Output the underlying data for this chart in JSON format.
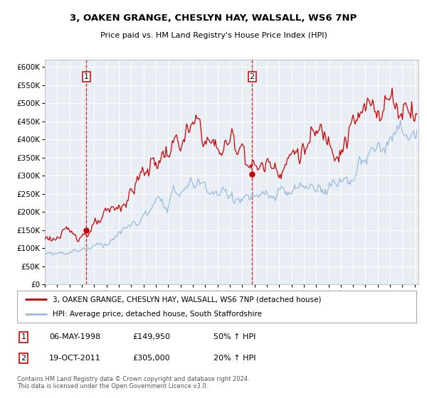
{
  "title1": "3, OAKEN GRANGE, CHESLYN HAY, WALSALL, WS6 7NP",
  "title2": "Price paid vs. HM Land Registry's House Price Index (HPI)",
  "ylim": [
    0,
    620000
  ],
  "yticks": [
    0,
    50000,
    100000,
    150000,
    200000,
    250000,
    300000,
    350000,
    400000,
    450000,
    500000,
    550000,
    600000
  ],
  "xlim_start": 1995.0,
  "xlim_end": 2025.3,
  "sale1_date": 1998.35,
  "sale1_price": 149950,
  "sale2_date": 2011.8,
  "sale2_price": 305000,
  "line_color_house": "#cc0000",
  "line_color_hpi": "#99bbdd",
  "dot_color": "#cc0000",
  "vline_color": "#cc0000",
  "legend_label_house": "3, OAKEN GRANGE, CHESLYN HAY, WALSALL, WS6 7NP (detached house)",
  "legend_label_hpi": "HPI: Average price, detached house, South Staffordshire",
  "annotation1_num": "1",
  "annotation1_date": "06-MAY-1998",
  "annotation1_price": "£149,950",
  "annotation1_hpi": "50% ↑ HPI",
  "annotation2_num": "2",
  "annotation2_date": "19-OCT-2011",
  "annotation2_price": "£305,000",
  "annotation2_hpi": "20% ↑ HPI",
  "footer": "Contains HM Land Registry data © Crown copyright and database right 2024.\nThis data is licensed under the Open Government Licence v3.0.",
  "plot_bg_color": "#e8eef4"
}
